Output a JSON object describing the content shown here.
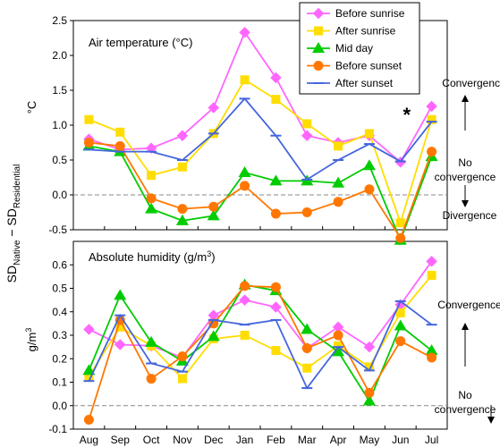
{
  "chart_data": {
    "type": "line",
    "categories": [
      "Aug",
      "Sep",
      "Oct",
      "Nov",
      "Dec",
      "Jan",
      "Feb",
      "Mar",
      "Apr",
      "May",
      "Jun",
      "Jul"
    ],
    "y_axis_label_main": "SD",
    "y_axis_label_sub1": "Native",
    "y_axis_label_mid": " − SD",
    "y_axis_label_sub2": "Residential",
    "legend": {
      "position": "top-center",
      "entries": [
        "Before sunrise",
        "After sunrise",
        "Mid day",
        "Before sunset",
        "After sunset"
      ]
    },
    "series_styles": [
      {
        "color": "#ff66ff",
        "marker": "diamond"
      },
      {
        "color": "#ffdd00",
        "marker": "square"
      },
      {
        "color": "#00cc00",
        "marker": "triangle"
      },
      {
        "color": "#ff7700",
        "marker": "circle"
      },
      {
        "color": "#4466dd",
        "marker": "dash"
      }
    ],
    "panels": [
      {
        "title": "Air temperature (°C)",
        "ylabel": "°C",
        "ylim": [
          -0.5,
          2.5
        ],
        "yticks": [
          -0.5,
          0.0,
          0.5,
          1.0,
          1.5,
          2.0,
          2.5
        ],
        "ytick_labels": [
          "-0.5",
          "0.0",
          "0.5",
          "1.0",
          "1.5",
          "2.0",
          "2.5"
        ],
        "baseline": 0,
        "annotations": {
          "star": {
            "text": "*",
            "category": "Jun"
          },
          "convergence": "Convergence",
          "no_convergence_1": "No",
          "no_convergence_2": "convergence",
          "divergence": "Divergence"
        },
        "series": [
          {
            "name": "Before sunrise",
            "values": [
              0.8,
              0.65,
              0.67,
              0.85,
              1.25,
              2.33,
              1.68,
              0.85,
              0.75,
              0.85,
              0.47,
              1.27
            ]
          },
          {
            "name": "After sunrise",
            "values": [
              1.08,
              0.9,
              0.28,
              0.4,
              0.88,
              1.65,
              1.37,
              1.02,
              0.7,
              0.88,
              -0.4,
              1.08
            ]
          },
          {
            "name": "Mid day",
            "values": [
              0.7,
              0.62,
              -0.2,
              -0.37,
              -0.3,
              0.32,
              0.2,
              0.2,
              0.17,
              0.42,
              -0.65,
              0.55
            ]
          },
          {
            "name": "Before sunset",
            "values": [
              0.75,
              0.7,
              -0.05,
              -0.2,
              -0.17,
              0.13,
              -0.27,
              -0.25,
              -0.1,
              0.08,
              -0.62,
              0.62
            ]
          },
          {
            "name": "After sunset",
            "values": [
              0.65,
              0.62,
              0.62,
              0.5,
              0.88,
              1.38,
              0.85,
              0.22,
              0.5,
              0.73,
              0.48,
              1.05
            ]
          }
        ]
      },
      {
        "title_prefix": "Absolute humidity (g/m",
        "title_sup": "3",
        "title_suffix": ")",
        "ylabel_prefix": "g/m",
        "ylabel_sup": "3",
        "ylim": [
          -0.1,
          0.7
        ],
        "yticks": [
          -0.1,
          0.0,
          0.1,
          0.2,
          0.3,
          0.4,
          0.5,
          0.6
        ],
        "ytick_labels": [
          "-0.1",
          "0.0",
          "0.1",
          "0.2",
          "0.3",
          "0.4",
          "0.5",
          "0.6"
        ],
        "baseline": 0,
        "annotations": {
          "convergence": "Convergence",
          "no_convergence_1": "No",
          "no_convergence_2": "convergence"
        },
        "series": [
          {
            "name": "Before sunrise",
            "values": [
              0.325,
              0.26,
              0.255,
              0.205,
              0.385,
              0.45,
              0.42,
              0.245,
              0.335,
              0.25,
              0.43,
              0.615
            ]
          },
          {
            "name": "After sunrise",
            "values": [
              0.125,
              0.335,
              0.255,
              0.115,
              0.285,
              0.3,
              0.235,
              0.16,
              0.255,
              0.165,
              0.395,
              0.555
            ]
          },
          {
            "name": "Mid day",
            "values": [
              0.15,
              0.47,
              0.27,
              0.19,
              0.295,
              0.515,
              0.49,
              0.325,
              0.23,
              0.02,
              0.34,
              0.235
            ]
          },
          {
            "name": "Before sunset",
            "values": [
              -0.06,
              0.365,
              0.115,
              0.21,
              0.35,
              0.51,
              0.505,
              0.245,
              0.3,
              0.055,
              0.275,
              0.205
            ]
          },
          {
            "name": "After sunset",
            "values": [
              0.105,
              0.385,
              0.18,
              0.145,
              0.365,
              0.345,
              0.365,
              0.075,
              0.25,
              0.15,
              0.445,
              0.345
            ]
          }
        ]
      }
    ]
  }
}
